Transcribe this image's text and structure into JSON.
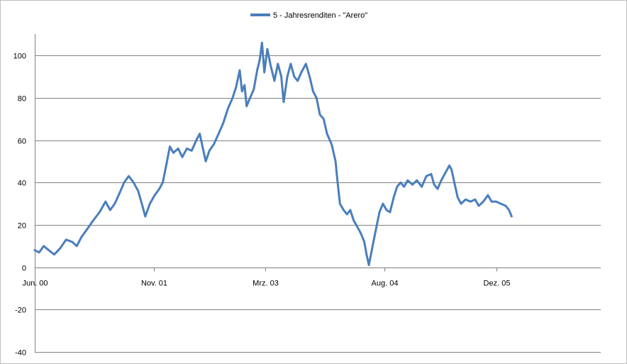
{
  "chart_data": {
    "type": "line",
    "title": "",
    "xlabel": "",
    "ylabel": "",
    "legend": {
      "placement": "top-center",
      "entries": [
        "5 - Jahresrenditen - \"Arero\""
      ]
    },
    "ylim": [
      -40,
      110
    ],
    "yticks": [
      -40,
      -20,
      0,
      20,
      40,
      60,
      80,
      100
    ],
    "grid": true,
    "x_domain": [
      "2000-06-01",
      "2007-02-28"
    ],
    "xticks": [
      {
        "date": "2000-06-01",
        "label": "Jun. 00"
      },
      {
        "date": "2001-11-01",
        "label": "Nov. 01"
      },
      {
        "date": "2003-03-01",
        "label": "Mrz. 03"
      },
      {
        "date": "2004-08-01",
        "label": "Aug. 04"
      },
      {
        "date": "2005-12-01",
        "label": "Dez. 05"
      }
    ],
    "series": [
      {
        "name": "5 - Jahresrenditen - \"Arero\"",
        "color": "#4a7ebb",
        "points": [
          [
            "2000-06-01",
            8
          ],
          [
            "2000-06-20",
            7
          ],
          [
            "2000-07-10",
            10
          ],
          [
            "2000-08-01",
            8
          ],
          [
            "2000-08-25",
            6
          ],
          [
            "2000-09-20",
            9
          ],
          [
            "2000-10-15",
            13
          ],
          [
            "2000-11-10",
            12
          ],
          [
            "2000-12-01",
            10
          ],
          [
            "2000-12-20",
            14
          ],
          [
            "2001-01-15",
            18
          ],
          [
            "2001-02-10",
            22
          ],
          [
            "2001-03-10",
            26
          ],
          [
            "2001-04-05",
            31
          ],
          [
            "2001-04-25",
            27
          ],
          [
            "2001-05-15",
            30
          ],
          [
            "2001-06-05",
            35
          ],
          [
            "2001-06-25",
            40
          ],
          [
            "2001-07-15",
            43
          ],
          [
            "2001-08-05",
            40
          ],
          [
            "2001-08-25",
            36
          ],
          [
            "2001-09-15",
            28
          ],
          [
            "2001-09-25",
            24
          ],
          [
            "2001-10-15",
            30
          ],
          [
            "2001-11-05",
            34
          ],
          [
            "2001-11-25",
            37
          ],
          [
            "2001-12-10",
            40
          ],
          [
            "2001-12-25",
            48
          ],
          [
            "2002-01-10",
            57
          ],
          [
            "2002-01-25",
            54
          ],
          [
            "2002-02-15",
            56
          ],
          [
            "2002-03-05",
            52
          ],
          [
            "2002-03-25",
            56
          ],
          [
            "2002-04-15",
            55
          ],
          [
            "2002-05-05",
            60
          ],
          [
            "2002-05-20",
            63
          ],
          [
            "2002-06-05",
            55
          ],
          [
            "2002-06-15",
            50
          ],
          [
            "2002-07-01",
            55
          ],
          [
            "2002-07-20",
            58
          ],
          [
            "2002-08-10",
            63
          ],
          [
            "2002-08-30",
            68
          ],
          [
            "2002-09-20",
            75
          ],
          [
            "2002-10-10",
            80
          ],
          [
            "2002-10-25",
            85
          ],
          [
            "2002-11-10",
            93
          ],
          [
            "2002-11-20",
            83
          ],
          [
            "2002-12-01",
            86
          ],
          [
            "2002-12-10",
            76
          ],
          [
            "2002-12-25",
            80
          ],
          [
            "2003-01-10",
            84
          ],
          [
            "2003-01-25",
            93
          ],
          [
            "2003-02-05",
            98
          ],
          [
            "2003-02-15",
            106
          ],
          [
            "2003-02-25",
            92
          ],
          [
            "2003-03-10",
            103
          ],
          [
            "2003-03-25",
            95
          ],
          [
            "2003-04-10",
            88
          ],
          [
            "2003-04-25",
            96
          ],
          [
            "2003-05-10",
            90
          ],
          [
            "2003-05-20",
            78
          ],
          [
            "2003-06-05",
            90
          ],
          [
            "2003-06-20",
            96
          ],
          [
            "2003-07-05",
            90
          ],
          [
            "2003-07-20",
            88
          ],
          [
            "2003-08-05",
            92
          ],
          [
            "2003-08-25",
            96
          ],
          [
            "2003-09-10",
            90
          ],
          [
            "2003-09-25",
            83
          ],
          [
            "2003-10-10",
            80
          ],
          [
            "2003-10-25",
            72
          ],
          [
            "2003-11-10",
            70
          ],
          [
            "2003-11-25",
            63
          ],
          [
            "2003-12-15",
            58
          ],
          [
            "2004-01-01",
            50
          ],
          [
            "2004-01-10",
            40
          ],
          [
            "2004-01-20",
            30
          ],
          [
            "2004-02-05",
            27
          ],
          [
            "2004-02-20",
            25
          ],
          [
            "2004-03-05",
            27
          ],
          [
            "2004-03-20",
            22
          ],
          [
            "2004-04-05",
            19
          ],
          [
            "2004-04-20",
            16
          ],
          [
            "2004-05-05",
            12
          ],
          [
            "2004-05-15",
            6
          ],
          [
            "2004-05-25",
            1
          ],
          [
            "2004-06-10",
            10
          ],
          [
            "2004-06-25",
            18
          ],
          [
            "2004-07-10",
            26
          ],
          [
            "2004-07-25",
            30
          ],
          [
            "2004-08-10",
            27
          ],
          [
            "2004-08-25",
            26
          ],
          [
            "2004-09-10",
            33
          ],
          [
            "2004-09-25",
            38
          ],
          [
            "2004-10-10",
            40
          ],
          [
            "2004-10-25",
            38
          ],
          [
            "2004-11-10",
            41
          ],
          [
            "2004-12-01",
            39
          ],
          [
            "2004-12-20",
            41
          ],
          [
            "2005-01-10",
            38
          ],
          [
            "2005-01-30",
            43
          ],
          [
            "2005-02-20",
            44
          ],
          [
            "2005-03-05",
            39
          ],
          [
            "2005-03-20",
            37
          ],
          [
            "2005-04-05",
            41
          ],
          [
            "2005-04-25",
            45
          ],
          [
            "2005-05-10",
            48
          ],
          [
            "2005-05-20",
            46
          ],
          [
            "2005-06-05",
            38
          ],
          [
            "2005-06-15",
            33
          ],
          [
            "2005-06-30",
            30
          ],
          [
            "2005-07-20",
            32
          ],
          [
            "2005-08-10",
            31
          ],
          [
            "2005-08-30",
            32
          ],
          [
            "2005-09-15",
            29
          ],
          [
            "2005-10-05",
            31
          ],
          [
            "2005-10-25",
            34
          ],
          [
            "2005-11-10",
            31
          ],
          [
            "2005-11-30",
            31
          ],
          [
            "2005-12-20",
            30
          ],
          [
            "2006-01-10",
            29
          ],
          [
            "2006-01-25",
            27
          ],
          [
            "2006-02-05",
            24
          ]
        ]
      }
    ]
  }
}
